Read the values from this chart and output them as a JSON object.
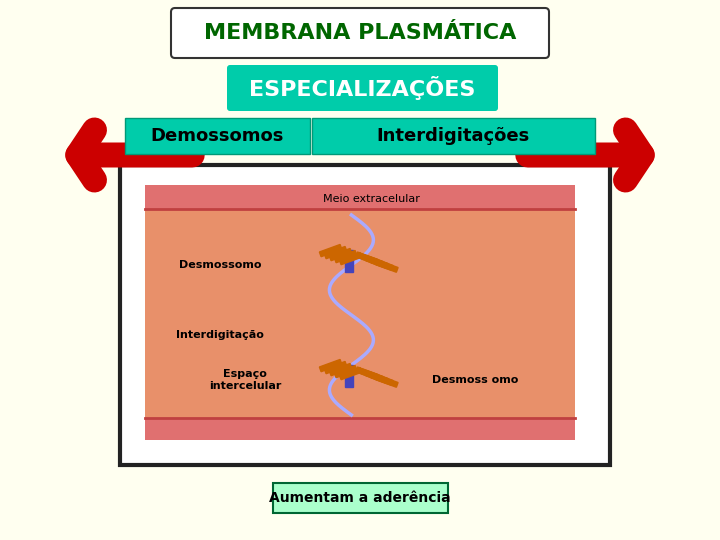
{
  "bg_color": "#FFFFF0",
  "title": "MEMBRANA PLASMÁTICA",
  "title_color": "#006600",
  "title_bg": "#FFFFFF",
  "title_border": "#333333",
  "subtitle": "ESPECIALIZAÇÕES",
  "subtitle_bg": "#00CCAA",
  "subtitle_color": "#FFFFFF",
  "btn1": "Demossomos",
  "btn2": "Interdigitações",
  "btn_bg": "#00CCAA",
  "btn_color": "#000000",
  "box_bg": "#FFFFFF",
  "box_border": "#222222",
  "image_bg": "#E8906A",
  "label_meio": "Meio extracelular",
  "label_desmossomo1": "Desmossomo",
  "label_interdigitacao": "Interdigitação",
  "label_espaco": "Espaço\nintercelular",
  "label_desmossomo2": "Desmoss omo",
  "label_aumentam": "Aumentam a aderência",
  "aumentam_bg": "#AAFFCC",
  "aumentam_border": "#006633"
}
